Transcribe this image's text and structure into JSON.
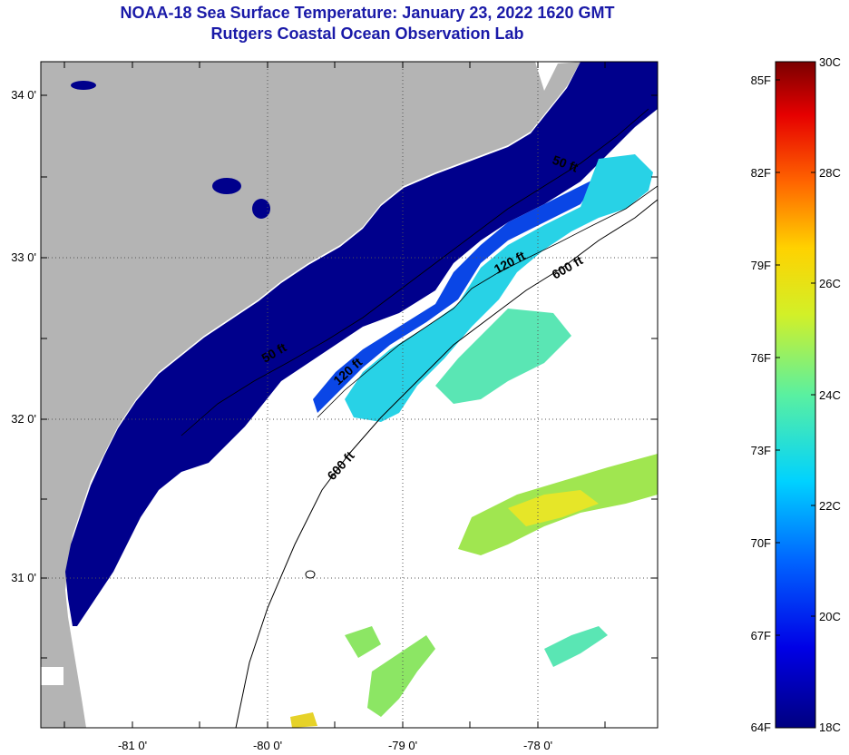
{
  "header": {
    "line1": "NOAA-18 Sea Surface Temperature:  January 23, 2022 1620 GMT",
    "line2": "Rutgers Coastal Ocean Observation Lab"
  },
  "axes": {
    "lon_ticks": [
      {
        "value": -81,
        "label": "-81 0'"
      },
      {
        "value": -80,
        "label": "-80 0'"
      },
      {
        "value": -79,
        "label": "-79 0'"
      },
      {
        "value": -78,
        "label": "-78 0'"
      }
    ],
    "lat_ticks": [
      {
        "value": 34,
        "label": "34 0'"
      },
      {
        "value": 33,
        "label": "33 0'"
      },
      {
        "value": 32,
        "label": "32 0'"
      },
      {
        "value": 31,
        "label": "31 0'"
      }
    ]
  },
  "contours": {
    "label_50_a": "50 ft",
    "label_50_b": "50 ft",
    "label_120_a": "120 ft",
    "label_120_b": "120 ft",
    "label_600_a": "600 ft",
    "label_600_b": "600 ft"
  },
  "colorbar": {
    "fahrenheit": [
      "85F",
      "82F",
      "79F",
      "76F",
      "73F",
      "70F",
      "67F",
      "64F"
    ],
    "celsius": [
      "30C",
      "28C",
      "26C",
      "24C",
      "22C",
      "20C",
      "18C"
    ]
  },
  "colors": {
    "land": "#b4b4b4",
    "cold_water": "#00008c",
    "mid_water": "#0a46e6",
    "cyan_water": "#28d2e6",
    "green_water": "#8ce664",
    "yellow_water": "#e6e628",
    "title": "#1a1aa8"
  }
}
